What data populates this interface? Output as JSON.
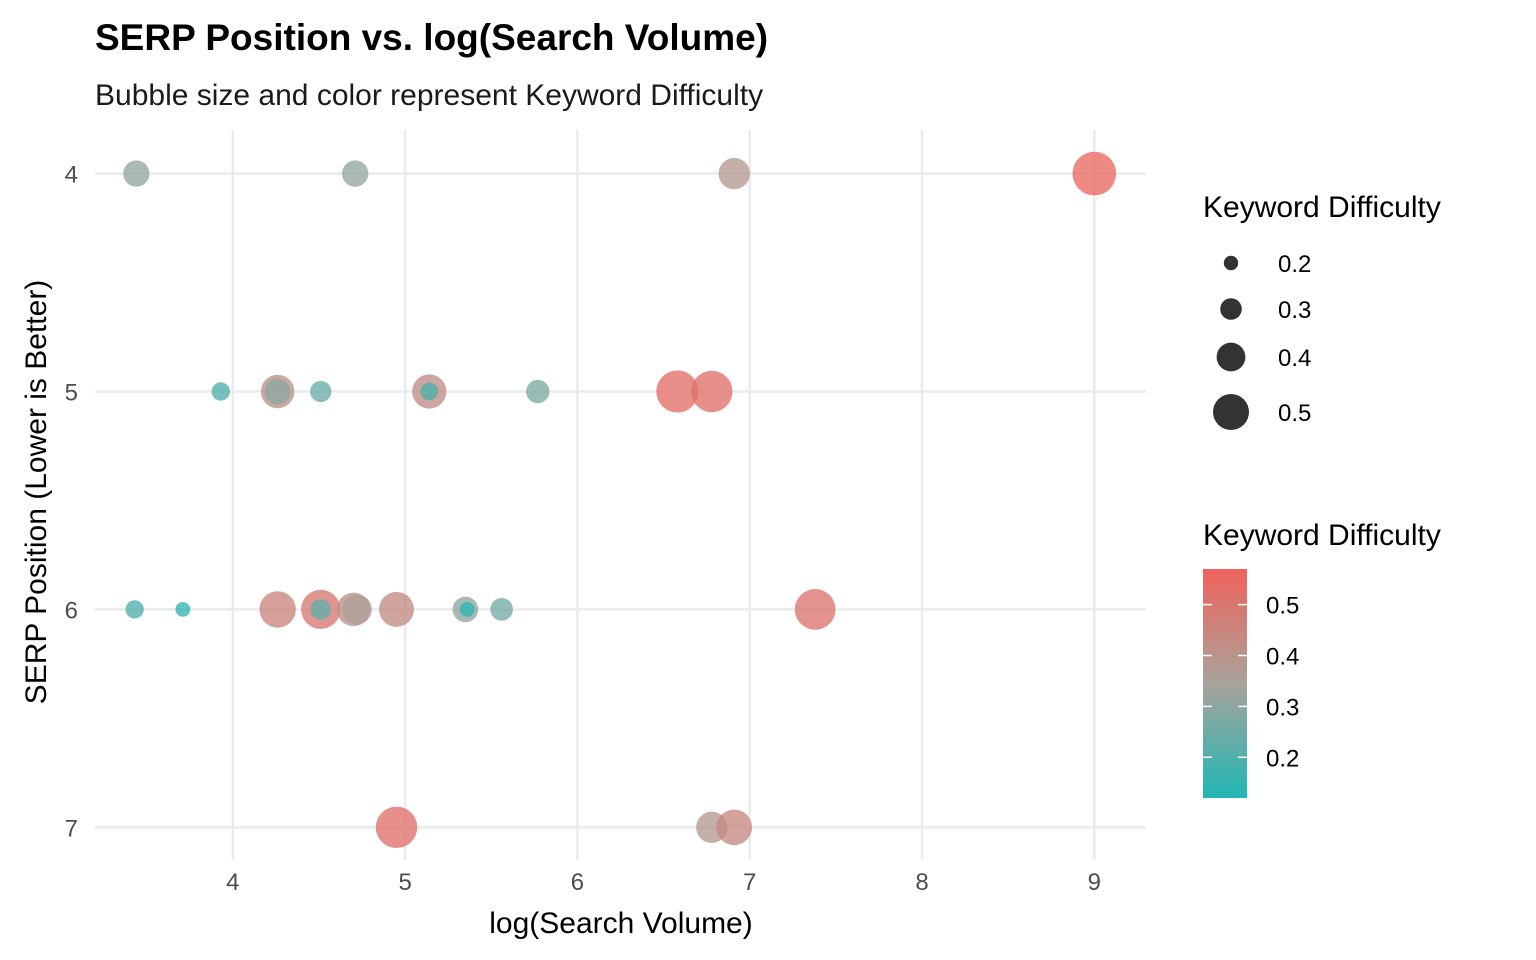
{
  "chart_data": {
    "type": "scatter",
    "title": "SERP Position vs. log(Search Volume)",
    "subtitle": "Bubble size and color represent Keyword Difficulty",
    "xlabel": "log(Search Volume)",
    "ylabel": "SERP Position (Lower is Better)",
    "xlim": [
      3.2,
      9.3
    ],
    "ylim": [
      3.8,
      7.15
    ],
    "y_reversed": true,
    "grid": true,
    "x_ticks": [
      4,
      5,
      6,
      7,
      8,
      9
    ],
    "y_ticks": [
      4,
      5,
      6,
      7
    ],
    "points": [
      {
        "x": 3.44,
        "y": 4,
        "difficulty": 0.31
      },
      {
        "x": 4.71,
        "y": 4,
        "difficulty": 0.31
      },
      {
        "x": 6.91,
        "y": 4,
        "difficulty": 0.38
      },
      {
        "x": 9.0,
        "y": 4,
        "difficulty": 0.55
      },
      {
        "x": 3.93,
        "y": 5,
        "difficulty": 0.2
      },
      {
        "x": 4.26,
        "y": 5,
        "difficulty": 0.41
      },
      {
        "x": 4.26,
        "y": 5,
        "difficulty": 0.3
      },
      {
        "x": 4.51,
        "y": 5,
        "difficulty": 0.24
      },
      {
        "x": 5.14,
        "y": 5,
        "difficulty": 0.42
      },
      {
        "x": 5.14,
        "y": 5,
        "difficulty": 0.19
      },
      {
        "x": 5.77,
        "y": 5,
        "difficulty": 0.27
      },
      {
        "x": 6.58,
        "y": 5,
        "difficulty": 0.53
      },
      {
        "x": 6.78,
        "y": 5,
        "difficulty": 0.52
      },
      {
        "x": 3.43,
        "y": 6,
        "difficulty": 0.2
      },
      {
        "x": 3.71,
        "y": 6,
        "difficulty": 0.15
      },
      {
        "x": 4.26,
        "y": 6,
        "difficulty": 0.45
      },
      {
        "x": 4.51,
        "y": 6,
        "difficulty": 0.49
      },
      {
        "x": 4.51,
        "y": 6,
        "difficulty": 0.23
      },
      {
        "x": 4.7,
        "y": 6,
        "difficulty": 0.41
      },
      {
        "x": 4.72,
        "y": 6,
        "difficulty": 0.36
      },
      {
        "x": 4.95,
        "y": 6,
        "difficulty": 0.43
      },
      {
        "x": 5.35,
        "y": 6,
        "difficulty": 0.3
      },
      {
        "x": 5.36,
        "y": 6,
        "difficulty": 0.15
      },
      {
        "x": 5.56,
        "y": 6,
        "difficulty": 0.26
      },
      {
        "x": 7.38,
        "y": 6,
        "difficulty": 0.51
      },
      {
        "x": 4.95,
        "y": 7,
        "difficulty": 0.52
      },
      {
        "x": 6.78,
        "y": 7,
        "difficulty": 0.38
      },
      {
        "x": 6.91,
        "y": 7,
        "difficulty": 0.44
      }
    ],
    "size_legend": {
      "title": "Keyword Difficulty",
      "entries": [
        {
          "label": "0.2",
          "value": 0.2
        },
        {
          "label": "0.3",
          "value": 0.3
        },
        {
          "label": "0.4",
          "value": 0.4
        },
        {
          "label": "0.5",
          "value": 0.5
        }
      ]
    },
    "color_legend": {
      "title": "Keyword Difficulty",
      "range": [
        0.12,
        0.57
      ],
      "ticks": [
        {
          "label": "0.5",
          "value": 0.5
        },
        {
          "label": "0.4",
          "value": 0.4
        },
        {
          "label": "0.3",
          "value": 0.3
        },
        {
          "label": "0.2",
          "value": 0.2
        }
      ],
      "low_color": "#20b7b4",
      "mid_color": "#a8a39b",
      "high_color": "#f0625c"
    }
  }
}
